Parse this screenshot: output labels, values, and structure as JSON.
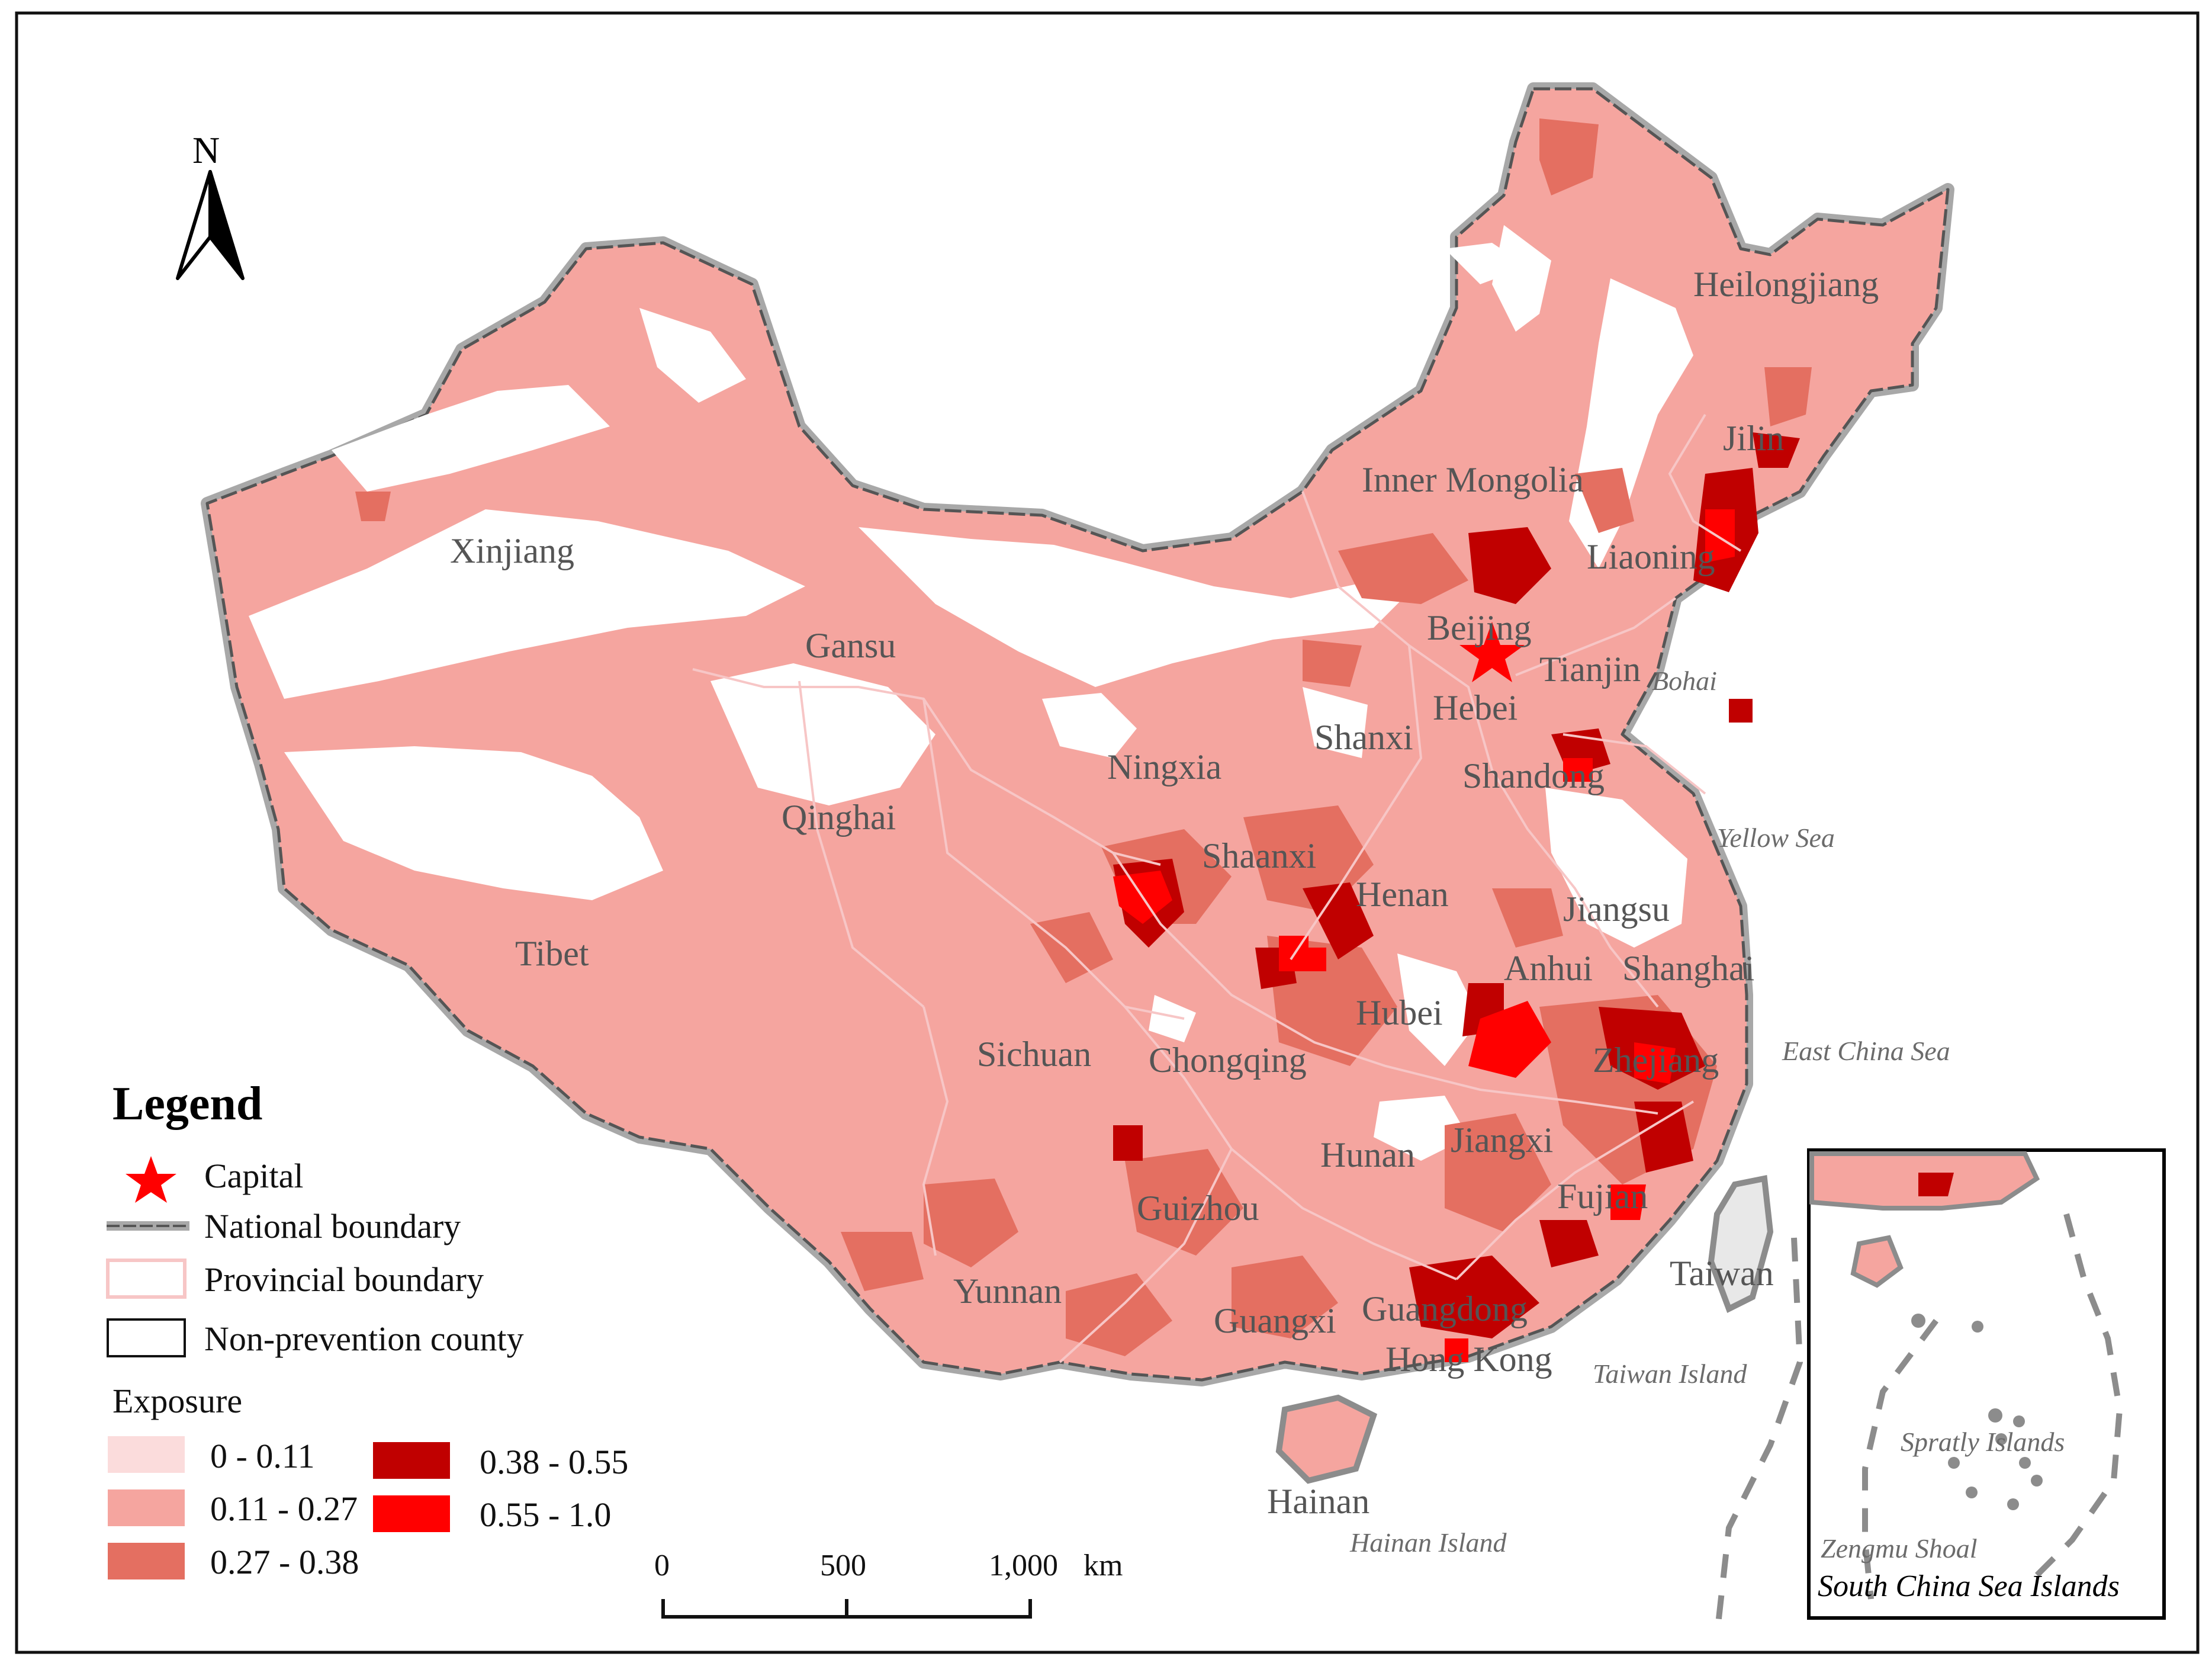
{
  "map": {
    "provinces": [
      "Xinjiang",
      "Gansu",
      "Qinghai",
      "Tibet",
      "Inner Mongolia",
      "Heilongjiang",
      "Jilin",
      "Liaoning",
      "Beijing",
      "Tianjin",
      "Hebei",
      "Shanxi",
      "Shandong",
      "Ningxia",
      "Shaanxi",
      "Henan",
      "Jiangsu",
      "Anhui",
      "Shanghai",
      "Hubei",
      "Sichuan",
      "Chongqing",
      "Zhejiang",
      "Hunan",
      "Jiangxi",
      "Fujian",
      "Guizhou",
      "Yunnan",
      "Guangxi",
      "Guangdong",
      "Hong Kong",
      "Taiwan",
      "Hainan"
    ],
    "seas": [
      "Bohai",
      "Yellow Sea",
      "East China Sea",
      "Taiwan Island",
      "Hainan Island"
    ],
    "north_arrow_label": "N",
    "colors": {
      "class1": "#fbdcdc",
      "class2": "#f5a59f",
      "class3": "#e46f61",
      "class4": "#c00000",
      "class5": "#ff0000",
      "national_boundary": "#8c8c8c",
      "provincial_boundary": "#f7c6c6",
      "capital": "#ff0000"
    }
  },
  "legend": {
    "title": "Legend",
    "items": {
      "capital": "Capital",
      "national_boundary": "National boundary",
      "provincial_boundary": "Provincial boundary",
      "non_prevention": "Non-prevention county"
    },
    "exposure_title": "Exposure",
    "classes": [
      "0 - 0.11",
      "0.11 - 0.27",
      "0.27 - 0.38",
      "0.38 - 0.55",
      "0.55 - 1.0"
    ]
  },
  "scale_bar": {
    "ticks": [
      "0",
      "500",
      "1,000"
    ],
    "unit": "km"
  },
  "inset": {
    "title": "South China Sea Islands",
    "labels": [
      "Spratly Islands",
      "Zengmu Shoal"
    ]
  }
}
